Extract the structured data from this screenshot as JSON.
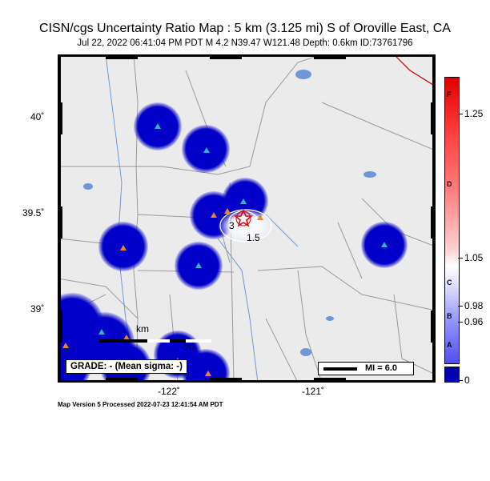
{
  "title": "CISN/cgs Uncertainty Ratio Map : 5 km (3.125 mi) S of Oroville East, CA",
  "subtitle": "Jul 22, 2022 06:41:04 PM PDT    M 4.2    N39.47 W121.48    Depth: 0.6km    ID:73761796",
  "footer": "Map Version 5 Processed 2022-07-23 12:41:54 AM PDT",
  "axes": {
    "lat_labels": [
      "40˚",
      "39.5˚",
      "39˚"
    ],
    "lon_labels": [
      "-122˚",
      "-121˚"
    ]
  },
  "grade_label": "GRADE: - (Mean sigma: -)",
  "scale_bar": {
    "label": "km",
    "value": "20"
  },
  "mi_legend": "MI = 6.0",
  "contours": [
    "3",
    "1.5"
  ],
  "colorbar": {
    "letters": [
      "F",
      "D",
      "C",
      "B",
      "A"
    ],
    "values": [
      "1.25",
      "1.05",
      "0.98",
      "0.96",
      "0"
    ]
  },
  "colors": {
    "station_blue": "#0000c8",
    "land": "#ebebeb",
    "water": "#6e97d8",
    "station_marker": "#25b9c0",
    "epicenter": "#e00000"
  }
}
